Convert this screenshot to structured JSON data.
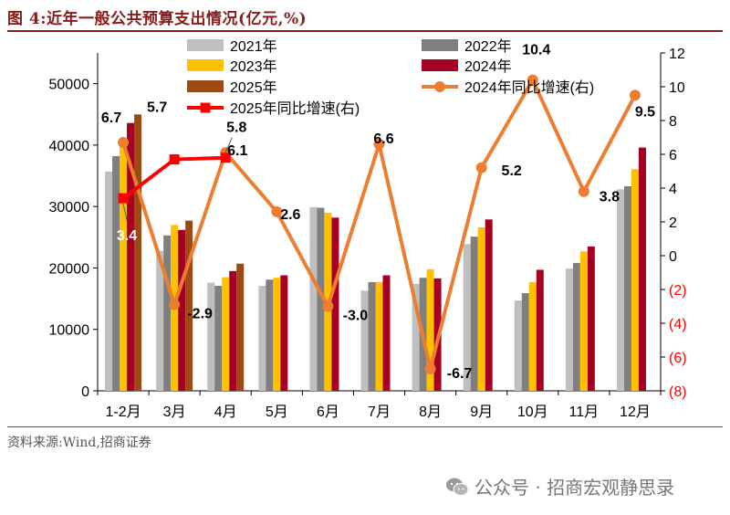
{
  "header": {
    "title": "图 4:近年一般公共预算支出情况(亿元,%)"
  },
  "footer": {
    "source": "资料来源:Wind,招商证券"
  },
  "watermark": {
    "text": "公众号 · 招商宏观静思录",
    "icon": "wechat-icon"
  },
  "colors": {
    "y2021": "#bfbfbf",
    "y2022": "#7f7f7f",
    "y2023": "#ffc000",
    "y2024": "#a50021",
    "y2025": "#9c4a14",
    "line2024": "#ed7d31",
    "line2025": "#ff0000",
    "title": "#8b1a1a",
    "negative_tick": "#ff0000"
  },
  "chart_data": {
    "type": "bar",
    "categories": [
      "1-2月",
      "3月",
      "4月",
      "5月",
      "6月",
      "7月",
      "8月",
      "9月",
      "10月",
      "11月",
      "12月"
    ],
    "ylim": [
      0,
      55000
    ],
    "y_ticks": [
      0,
      10000,
      20000,
      30000,
      40000,
      50000
    ],
    "y_tick_labels": [
      "0",
      "10000",
      "20000",
      "30000",
      "40000",
      "50000"
    ],
    "y2lim": [
      -8,
      12
    ],
    "y2_ticks": [
      -8,
      -6,
      -4,
      -2,
      0,
      2,
      4,
      6,
      8,
      10,
      12
    ],
    "y2_tick_labels": [
      "(8)",
      "(6)",
      "(4)",
      "(2)",
      "0",
      "2",
      "4",
      "6",
      "8",
      "10",
      "12"
    ],
    "series": [
      {
        "name": "2021年",
        "color": "#bfbfbf",
        "values": [
          35700,
          22800,
          17600,
          17100,
          29900,
          16300,
          17400,
          23900,
          14700,
          19900,
          32800
        ]
      },
      {
        "name": "2022年",
        "color": "#7f7f7f",
        "values": [
          38200,
          25300,
          17100,
          18100,
          29800,
          17700,
          18400,
          25100,
          15900,
          20800,
          33300
        ]
      },
      {
        "name": "2023年",
        "color": "#ffc000",
        "values": [
          40600,
          27000,
          18500,
          18400,
          29000,
          17700,
          19800,
          26600,
          17700,
          22700,
          36100
        ]
      },
      {
        "name": "2024年",
        "color": "#a50021",
        "values": [
          43600,
          26200,
          19500,
          18800,
          28200,
          18800,
          18300,
          27900,
          19700,
          23500,
          39600
        ]
      },
      {
        "name": "2025年",
        "color": "#9c4a14",
        "values": [
          45000,
          27700,
          20700,
          null,
          null,
          null,
          null,
          null,
          null,
          null,
          null
        ]
      }
    ],
    "line_series": [
      {
        "name": "2024年同比增速(右)",
        "color": "#ed7d31",
        "axis": "right",
        "values": [
          6.7,
          -2.9,
          6.1,
          2.6,
          -3.0,
          6.6,
          -6.7,
          5.2,
          10.4,
          3.8,
          9.5
        ],
        "labels": [
          "6.7",
          "-2.9",
          "6.1",
          "2.6",
          "-3.0",
          "6.6",
          "-6.7",
          "5.2",
          "10.4",
          "3.8",
          "9.5"
        ]
      },
      {
        "name": "2025年同比增速(右)",
        "color": "#ff0000",
        "axis": "right",
        "values": [
          3.4,
          5.7,
          5.8,
          null,
          null,
          null,
          null,
          null,
          null,
          null,
          null
        ],
        "labels": [
          "3.4",
          "5.7",
          "5.8"
        ]
      }
    ],
    "legend": [
      "2021年",
      "2022年",
      "2023年",
      "2024年",
      "2025年",
      "2024年同比增速(右)",
      "2025年同比增速(右)"
    ],
    "legend_position": "top"
  }
}
